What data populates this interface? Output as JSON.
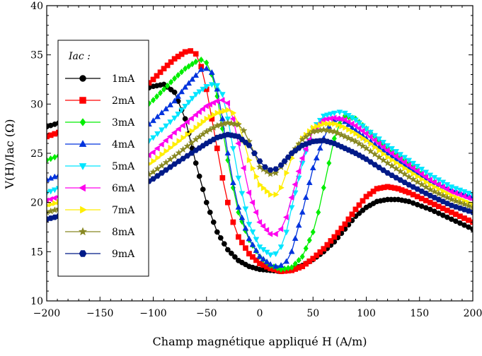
{
  "chart_data": {
    "type": "line",
    "title": "",
    "xlabel": "Champ magnétique appliqué H (A/m)",
    "ylabel": "V(H)/Iac (Ω)",
    "xlim": [
      -200,
      200
    ],
    "ylim": [
      10,
      40
    ],
    "xticks": [
      -200,
      -150,
      -100,
      -50,
      0,
      50,
      100,
      150,
      200
    ],
    "yticks": [
      10,
      15,
      20,
      25,
      30,
      35,
      40
    ],
    "grid": false,
    "legend_title": "Iac :",
    "legend_position": "upper-left",
    "series": [
      {
        "name": "1mA",
        "color": "#000000",
        "marker": "circle",
        "x": [
          -200,
          -170,
          -140,
          -120,
          -100,
          -90,
          -80,
          -70,
          -60,
          -50,
          -40,
          -30,
          -20,
          -10,
          0,
          10,
          20,
          30,
          40,
          50,
          60,
          70,
          80,
          90,
          100,
          110,
          120,
          130,
          140,
          160,
          180,
          200
        ],
        "y": [
          27.7,
          28.7,
          30.1,
          31.1,
          31.8,
          32.0,
          31.2,
          28.5,
          24.0,
          20.0,
          17.0,
          15.2,
          14.1,
          13.5,
          13.2,
          13.1,
          13.0,
          13.2,
          13.6,
          14.2,
          15.0,
          16.0,
          17.3,
          18.6,
          19.5,
          20.1,
          20.3,
          20.3,
          20.1,
          19.3,
          18.3,
          17.3
        ]
      },
      {
        "name": "2mA",
        "color": "#ff0000",
        "marker": "square",
        "x": [
          -200,
          -170,
          -140,
          -120,
          -100,
          -90,
          -80,
          -70,
          -65,
          -60,
          -55,
          -50,
          -45,
          -40,
          -35,
          -30,
          -25,
          -20,
          -10,
          0,
          10,
          20,
          30,
          40,
          50,
          60,
          70,
          80,
          90,
          100,
          110,
          120,
          130,
          140,
          160,
          180,
          200
        ],
        "y": [
          26.7,
          27.8,
          29.3,
          30.8,
          32.5,
          33.6,
          34.6,
          35.3,
          35.4,
          35.1,
          33.8,
          31.5,
          28.5,
          25.5,
          22.5,
          20.0,
          18.0,
          16.5,
          14.8,
          13.8,
          13.3,
          13.0,
          13.1,
          13.5,
          14.3,
          15.3,
          16.5,
          17.8,
          19.3,
          20.6,
          21.4,
          21.6,
          21.4,
          21.0,
          20.0,
          19.0,
          18.0
        ]
      },
      {
        "name": "3mA",
        "color": "#00ee00",
        "marker": "diamond",
        "x": [
          -200,
          -170,
          -140,
          -120,
          -100,
          -90,
          -80,
          -70,
          -60,
          -55,
          -50,
          -45,
          -40,
          -35,
          -30,
          -25,
          -20,
          -10,
          0,
          10,
          20,
          30,
          40,
          50,
          55,
          60,
          65,
          70,
          75,
          80,
          90,
          100,
          120,
          140,
          160,
          180,
          200
        ],
        "y": [
          24.3,
          25.5,
          27.2,
          28.7,
          30.4,
          31.5,
          32.6,
          33.6,
          34.3,
          34.5,
          34.2,
          33.0,
          30.8,
          27.5,
          24.3,
          21.5,
          19.0,
          16.2,
          14.5,
          13.6,
          13.2,
          13.4,
          14.5,
          17.0,
          19.0,
          21.5,
          24.0,
          26.5,
          28.0,
          28.8,
          28.5,
          27.5,
          25.5,
          24.0,
          22.3,
          21.2,
          20.4
        ]
      },
      {
        "name": "4mA",
        "color": "#0033dd",
        "marker": "triangle-up",
        "x": [
          -200,
          -170,
          -140,
          -120,
          -100,
          -80,
          -70,
          -60,
          -55,
          -50,
          -45,
          -40,
          -35,
          -30,
          -25,
          -20,
          -10,
          0,
          10,
          15,
          20,
          25,
          30,
          40,
          50,
          60,
          65,
          70,
          75,
          80,
          90,
          100,
          120,
          140,
          160,
          180,
          200
        ],
        "y": [
          22.3,
          23.5,
          25.0,
          26.5,
          28.3,
          30.3,
          31.7,
          32.9,
          33.5,
          33.6,
          33.2,
          31.5,
          28.5,
          25.0,
          22.0,
          19.5,
          16.3,
          14.5,
          13.7,
          13.5,
          13.6,
          14.0,
          15.0,
          19.0,
          23.5,
          26.5,
          27.7,
          28.4,
          28.5,
          28.2,
          27.3,
          26.5,
          25.0,
          23.5,
          22.2,
          21.3,
          20.6
        ]
      },
      {
        "name": "5mA",
        "color": "#00e5ff",
        "marker": "triangle-down",
        "x": [
          -200,
          -170,
          -140,
          -120,
          -100,
          -80,
          -70,
          -60,
          -50,
          -45,
          -40,
          -35,
          -30,
          -25,
          -20,
          -10,
          0,
          10,
          15,
          20,
          25,
          30,
          40,
          50,
          60,
          70,
          75,
          80,
          90,
          100,
          120,
          140,
          160,
          180,
          200
        ],
        "y": [
          21.0,
          22.2,
          23.6,
          25.0,
          26.6,
          28.6,
          29.8,
          31.0,
          31.8,
          32.0,
          31.9,
          31.0,
          28.5,
          25.5,
          22.5,
          17.8,
          15.5,
          14.7,
          14.8,
          15.5,
          17.0,
          19.5,
          24.0,
          27.5,
          28.8,
          29.1,
          29.2,
          29.1,
          28.4,
          27.5,
          25.8,
          24.3,
          22.8,
          21.6,
          20.8
        ]
      },
      {
        "name": "6mA",
        "color": "#ff00ee",
        "marker": "triangle-left",
        "x": [
          -200,
          -170,
          -140,
          -120,
          -100,
          -80,
          -60,
          -50,
          -40,
          -35,
          -30,
          -25,
          -20,
          -15,
          -10,
          0,
          10,
          15,
          20,
          25,
          30,
          40,
          50,
          60,
          70,
          80,
          90,
          100,
          120,
          140,
          160,
          180,
          200
        ],
        "y": [
          20.2,
          21.2,
          22.5,
          23.6,
          25.1,
          27.1,
          28.9,
          29.8,
          30.3,
          30.4,
          30.1,
          28.5,
          26.0,
          23.5,
          21.0,
          18.0,
          16.8,
          16.8,
          17.3,
          18.5,
          20.5,
          24.5,
          27.3,
          28.4,
          28.6,
          28.4,
          27.8,
          27.0,
          25.3,
          23.8,
          22.3,
          21.1,
          20.3
        ]
      },
      {
        "name": "7mA",
        "color": "#ffee00",
        "marker": "triangle-right",
        "x": [
          -200,
          -170,
          -140,
          -120,
          -100,
          -80,
          -60,
          -50,
          -40,
          -30,
          -25,
          -20,
          -15,
          -10,
          0,
          10,
          15,
          20,
          25,
          30,
          40,
          50,
          60,
          70,
          80,
          90,
          100,
          120,
          140,
          160,
          180,
          200
        ],
        "y": [
          19.7,
          20.6,
          21.8,
          22.8,
          24.2,
          25.9,
          27.6,
          28.5,
          29.1,
          29.4,
          29.1,
          28.0,
          26.3,
          24.3,
          21.8,
          20.8,
          20.8,
          21.5,
          23.0,
          24.5,
          26.5,
          27.6,
          28.0,
          28.0,
          27.6,
          27.0,
          26.3,
          24.6,
          23.2,
          21.8,
          20.7,
          19.8
        ]
      },
      {
        "name": "8mA",
        "color": "#888822",
        "marker": "star",
        "x": [
          -200,
          -170,
          -140,
          -120,
          -100,
          -80,
          -60,
          -50,
          -40,
          -30,
          -20,
          -15,
          -10,
          -5,
          0,
          10,
          15,
          20,
          30,
          40,
          50,
          60,
          70,
          80,
          90,
          100,
          120,
          140,
          160,
          180,
          200
        ],
        "y": [
          19.0,
          19.9,
          21.0,
          21.9,
          23.1,
          24.7,
          26.4,
          27.2,
          27.8,
          28.1,
          27.9,
          27.3,
          26.2,
          25.0,
          23.6,
          22.9,
          23.0,
          23.6,
          25.0,
          26.4,
          27.2,
          27.4,
          27.2,
          26.7,
          26.2,
          25.5,
          24.0,
          22.6,
          21.3,
          20.3,
          19.5
        ]
      },
      {
        "name": "9mA",
        "color": "#001a88",
        "marker": "hexagon",
        "x": [
          -200,
          -170,
          -140,
          -120,
          -100,
          -80,
          -60,
          -50,
          -40,
          -30,
          -20,
          -10,
          -5,
          0,
          5,
          10,
          15,
          20,
          30,
          40,
          50,
          60,
          70,
          80,
          90,
          100,
          120,
          140,
          160,
          180,
          200
        ],
        "y": [
          18.3,
          19.1,
          20.3,
          21.2,
          22.4,
          23.9,
          25.3,
          26.0,
          26.6,
          26.9,
          26.7,
          25.8,
          25.0,
          24.2,
          23.6,
          23.3,
          23.4,
          23.8,
          25.0,
          25.8,
          26.2,
          26.3,
          26.0,
          25.5,
          25.0,
          24.4,
          23.0,
          21.8,
          20.7,
          19.7,
          19.0
        ]
      }
    ]
  }
}
